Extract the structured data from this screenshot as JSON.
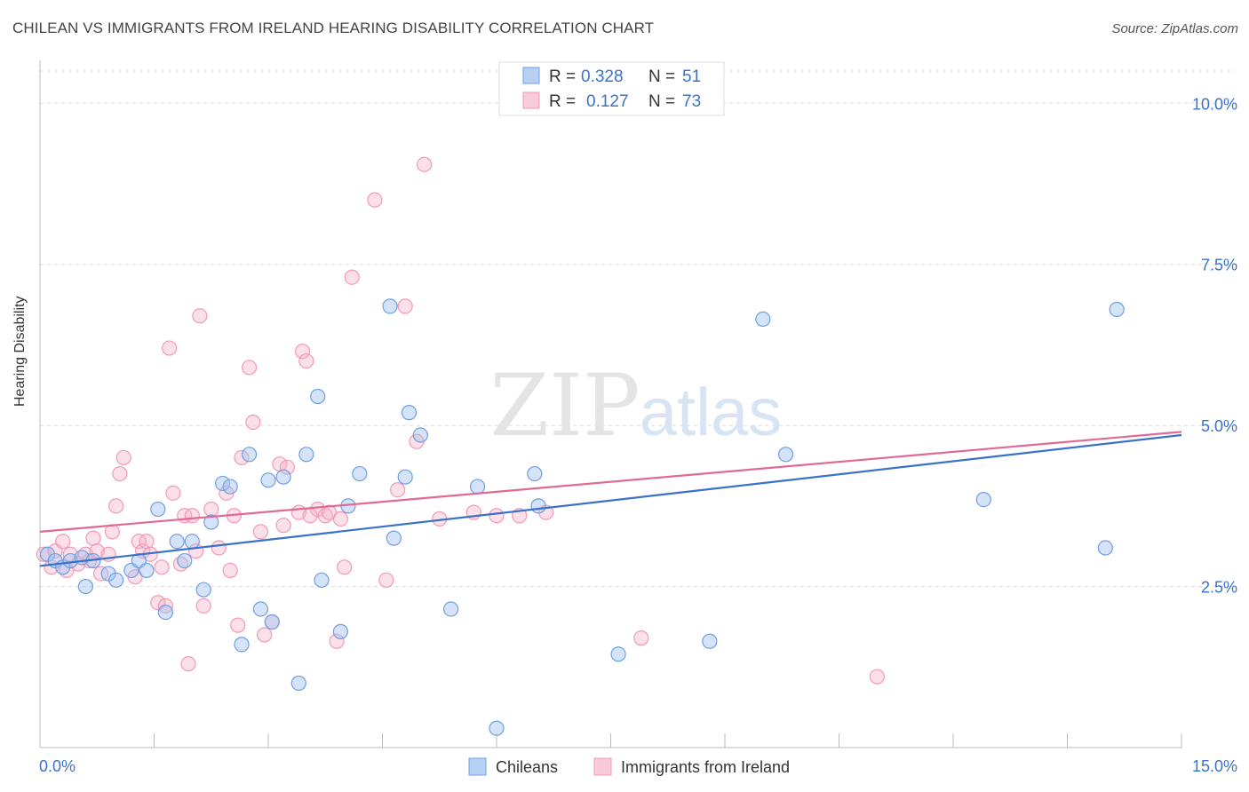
{
  "header": {
    "title": "CHILEAN VS IMMIGRANTS FROM IRELAND HEARING DISABILITY CORRELATION CHART",
    "source": "Source: ZipAtlas.com"
  },
  "watermark": {
    "zip": "ZIP",
    "atlas": "atlas"
  },
  "legend_top": {
    "rows": [
      {
        "r_label": "R =",
        "r_value": "0.328",
        "n_label": "N =",
        "n_value": "51"
      },
      {
        "r_label": "R =",
        "r_value": "0.127",
        "n_label": "N =",
        "n_value": "73"
      }
    ]
  },
  "chart_data": {
    "type": "scatter",
    "title": "CHILEAN VS IMMIGRANTS FROM IRELAND HEARING DISABILITY CORRELATION CHART",
    "xlabel": "",
    "ylabel": "Hearing Disability",
    "xlim": [
      0,
      15
    ],
    "ylim": [
      0,
      10.5
    ],
    "x_tick_labels": [
      "0.0%",
      "15.0%"
    ],
    "y_ticks": [
      2.5,
      5.0,
      7.5,
      10.0
    ],
    "y_tick_labels": [
      "2.5%",
      "5.0%",
      "7.5%",
      "10.0%"
    ],
    "grid": "horizontal dashed",
    "legend_position": "bottom-center",
    "colors": {
      "chileans": "#6f9fe0",
      "ireland": "#f29ab5",
      "chileans_line": "#3a72c8",
      "ireland_line": "#e06a95",
      "axis_text": "#3a72c8"
    },
    "series": [
      {
        "name": "Chileans",
        "trend": [
          [
            0,
            2.82
          ],
          [
            15,
            4.85
          ]
        ],
        "points": [
          [
            0.1,
            3.0
          ],
          [
            0.2,
            2.9
          ],
          [
            0.3,
            2.8
          ],
          [
            0.4,
            2.9
          ],
          [
            0.55,
            2.95
          ],
          [
            0.6,
            2.5
          ],
          [
            0.7,
            2.9
          ],
          [
            0.9,
            2.7
          ],
          [
            1.0,
            2.6
          ],
          [
            1.2,
            2.75
          ],
          [
            1.3,
            2.9
          ],
          [
            1.4,
            2.75
          ],
          [
            1.55,
            3.7
          ],
          [
            1.65,
            2.1
          ],
          [
            1.8,
            3.2
          ],
          [
            1.9,
            2.9
          ],
          [
            2.0,
            3.2
          ],
          [
            2.15,
            2.45
          ],
          [
            2.25,
            3.5
          ],
          [
            2.4,
            4.1
          ],
          [
            2.5,
            4.05
          ],
          [
            2.65,
            1.6
          ],
          [
            2.75,
            4.55
          ],
          [
            2.9,
            2.15
          ],
          [
            3.0,
            4.15
          ],
          [
            3.05,
            1.95
          ],
          [
            3.2,
            4.2
          ],
          [
            3.4,
            1.0
          ],
          [
            3.5,
            4.55
          ],
          [
            3.65,
            5.45
          ],
          [
            3.7,
            2.6
          ],
          [
            3.95,
            1.8
          ],
          [
            4.05,
            3.75
          ],
          [
            4.2,
            4.25
          ],
          [
            4.6,
            6.85
          ],
          [
            4.65,
            3.25
          ],
          [
            4.8,
            4.2
          ],
          [
            4.85,
            5.2
          ],
          [
            5.0,
            4.85
          ],
          [
            5.4,
            2.15
          ],
          [
            5.75,
            4.05
          ],
          [
            6.0,
            0.3
          ],
          [
            6.5,
            4.25
          ],
          [
            6.55,
            3.75
          ],
          [
            7.6,
            1.45
          ],
          [
            8.8,
            1.65
          ],
          [
            9.5,
            6.65
          ],
          [
            9.8,
            4.55
          ],
          [
            12.4,
            3.85
          ],
          [
            14.0,
            3.1
          ],
          [
            14.15,
            6.8
          ]
        ]
      },
      {
        "name": "Immigrants from Ireland",
        "trend": [
          [
            0,
            3.35
          ],
          [
            15,
            4.9
          ]
        ],
        "points": [
          [
            0.05,
            3.0
          ],
          [
            0.15,
            2.8
          ],
          [
            0.2,
            3.05
          ],
          [
            0.3,
            3.2
          ],
          [
            0.4,
            3.0
          ],
          [
            0.5,
            2.85
          ],
          [
            0.6,
            3.0
          ],
          [
            0.7,
            3.25
          ],
          [
            0.75,
            3.05
          ],
          [
            0.8,
            2.7
          ],
          [
            0.9,
            3.0
          ],
          [
            0.95,
            3.35
          ],
          [
            1.0,
            3.75
          ],
          [
            1.05,
            4.25
          ],
          [
            1.1,
            4.5
          ],
          [
            1.25,
            2.65
          ],
          [
            1.3,
            3.2
          ],
          [
            1.35,
            3.05
          ],
          [
            1.4,
            3.2
          ],
          [
            1.45,
            3.0
          ],
          [
            1.55,
            2.25
          ],
          [
            1.6,
            2.8
          ],
          [
            1.65,
            2.2
          ],
          [
            1.7,
            6.2
          ],
          [
            1.75,
            3.95
          ],
          [
            1.85,
            2.85
          ],
          [
            1.9,
            3.6
          ],
          [
            1.95,
            1.3
          ],
          [
            2.0,
            3.6
          ],
          [
            2.05,
            3.05
          ],
          [
            2.1,
            6.7
          ],
          [
            2.15,
            2.2
          ],
          [
            2.25,
            3.7
          ],
          [
            2.35,
            3.1
          ],
          [
            2.45,
            3.95
          ],
          [
            2.5,
            2.75
          ],
          [
            2.55,
            3.6
          ],
          [
            2.6,
            1.9
          ],
          [
            2.65,
            4.5
          ],
          [
            2.75,
            5.9
          ],
          [
            2.8,
            5.05
          ],
          [
            2.9,
            3.35
          ],
          [
            2.95,
            1.75
          ],
          [
            3.05,
            1.95
          ],
          [
            3.15,
            4.4
          ],
          [
            3.2,
            3.45
          ],
          [
            3.25,
            4.35
          ],
          [
            3.4,
            3.65
          ],
          [
            3.45,
            6.15
          ],
          [
            3.5,
            6.0
          ],
          [
            3.55,
            3.6
          ],
          [
            3.65,
            3.7
          ],
          [
            3.75,
            3.6
          ],
          [
            3.8,
            3.65
          ],
          [
            3.9,
            1.65
          ],
          [
            3.95,
            3.55
          ],
          [
            4.0,
            2.8
          ],
          [
            4.1,
            7.3
          ],
          [
            4.4,
            8.5
          ],
          [
            4.55,
            2.6
          ],
          [
            4.7,
            4.0
          ],
          [
            4.8,
            6.85
          ],
          [
            4.95,
            4.75
          ],
          [
            5.05,
            9.05
          ],
          [
            5.25,
            3.55
          ],
          [
            5.7,
            3.65
          ],
          [
            6.0,
            3.6
          ],
          [
            6.3,
            3.6
          ],
          [
            6.65,
            3.65
          ],
          [
            7.9,
            1.7
          ],
          [
            11.0,
            1.1
          ],
          [
            0.35,
            2.75
          ],
          [
            0.65,
            2.9
          ]
        ]
      }
    ]
  },
  "legend_bottom": {
    "items": [
      {
        "label": "Chileans"
      },
      {
        "label": "Immigrants from Ireland"
      }
    ]
  }
}
